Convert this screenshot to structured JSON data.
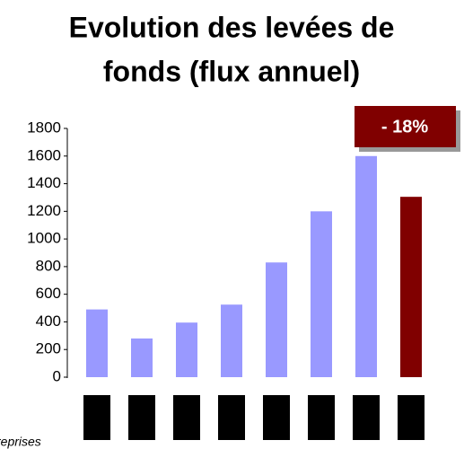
{
  "chart_data": {
    "type": "bar",
    "title": [
      "Evolution des levées de",
      "fonds (flux annuel)"
    ],
    "categories": [
      null,
      null,
      null,
      null,
      null,
      null,
      null,
      null
    ],
    "values": [
      490,
      280,
      395,
      525,
      830,
      1200,
      1600,
      1305
    ],
    "colors": [
      "#9999ff",
      "#9999ff",
      "#9999ff",
      "#9999ff",
      "#9999ff",
      "#9999ff",
      "#9999ff",
      "#800000"
    ],
    "ylim": [
      0,
      1800
    ],
    "yticks": [
      0,
      200,
      400,
      600,
      800,
      1000,
      1200,
      1400,
      1600,
      1800
    ],
    "annotation": "- 18%",
    "note": "reprises"
  }
}
